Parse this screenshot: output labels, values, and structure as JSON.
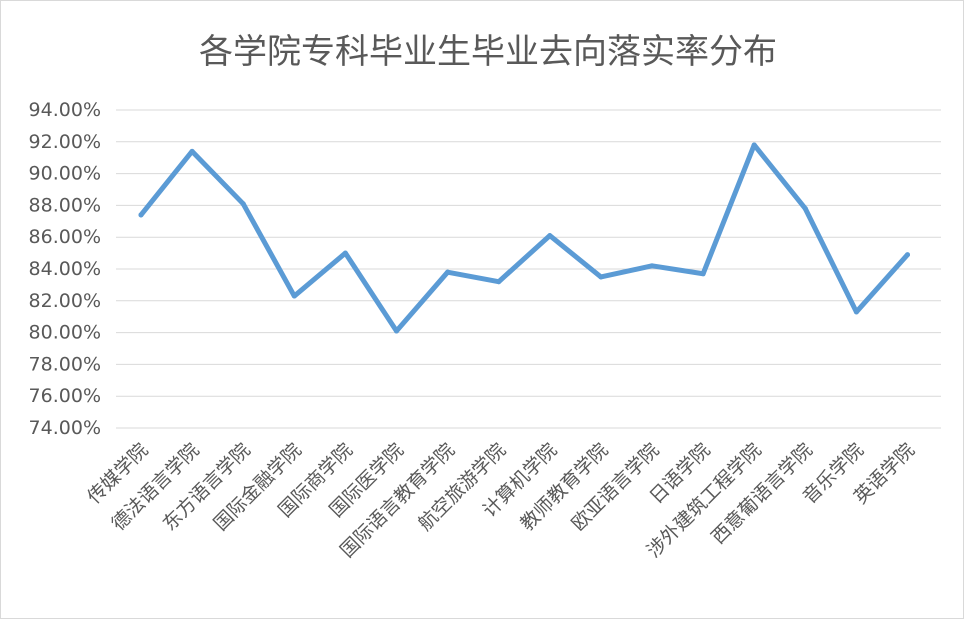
{
  "chart_data": {
    "type": "line",
    "title": "各学院专科毕业生毕业去向落实率分布",
    "xlabel": "",
    "ylabel": "",
    "ylim": [
      74,
      94
    ],
    "ytick_step": 2,
    "ytick_labels": [
      "94.00%",
      "92.00%",
      "90.00%",
      "88.00%",
      "86.00%",
      "84.00%",
      "82.00%",
      "80.00%",
      "78.00%",
      "76.00%",
      "74.00%"
    ],
    "grid": true,
    "legend": "none",
    "categories": [
      "传媒学院",
      "德法语言学院",
      "东方语言学院",
      "国际金融学院",
      "国际商学院",
      "国际医学院",
      "国际语言教育学院",
      "航空旅游学院",
      "计算机学院",
      "教师教育学院",
      "欧亚语言学院",
      "日语学院",
      "涉外建筑工程学院",
      "西意葡语言学院",
      "音乐学院",
      "英语学院"
    ],
    "series": [
      {
        "color": "#5b9bd5",
        "values": [
          87.4,
          91.4,
          88.1,
          82.3,
          85.0,
          80.1,
          83.8,
          83.2,
          86.1,
          83.5,
          84.2,
          83.7,
          91.8,
          87.8,
          81.3,
          84.9
        ]
      }
    ]
  }
}
